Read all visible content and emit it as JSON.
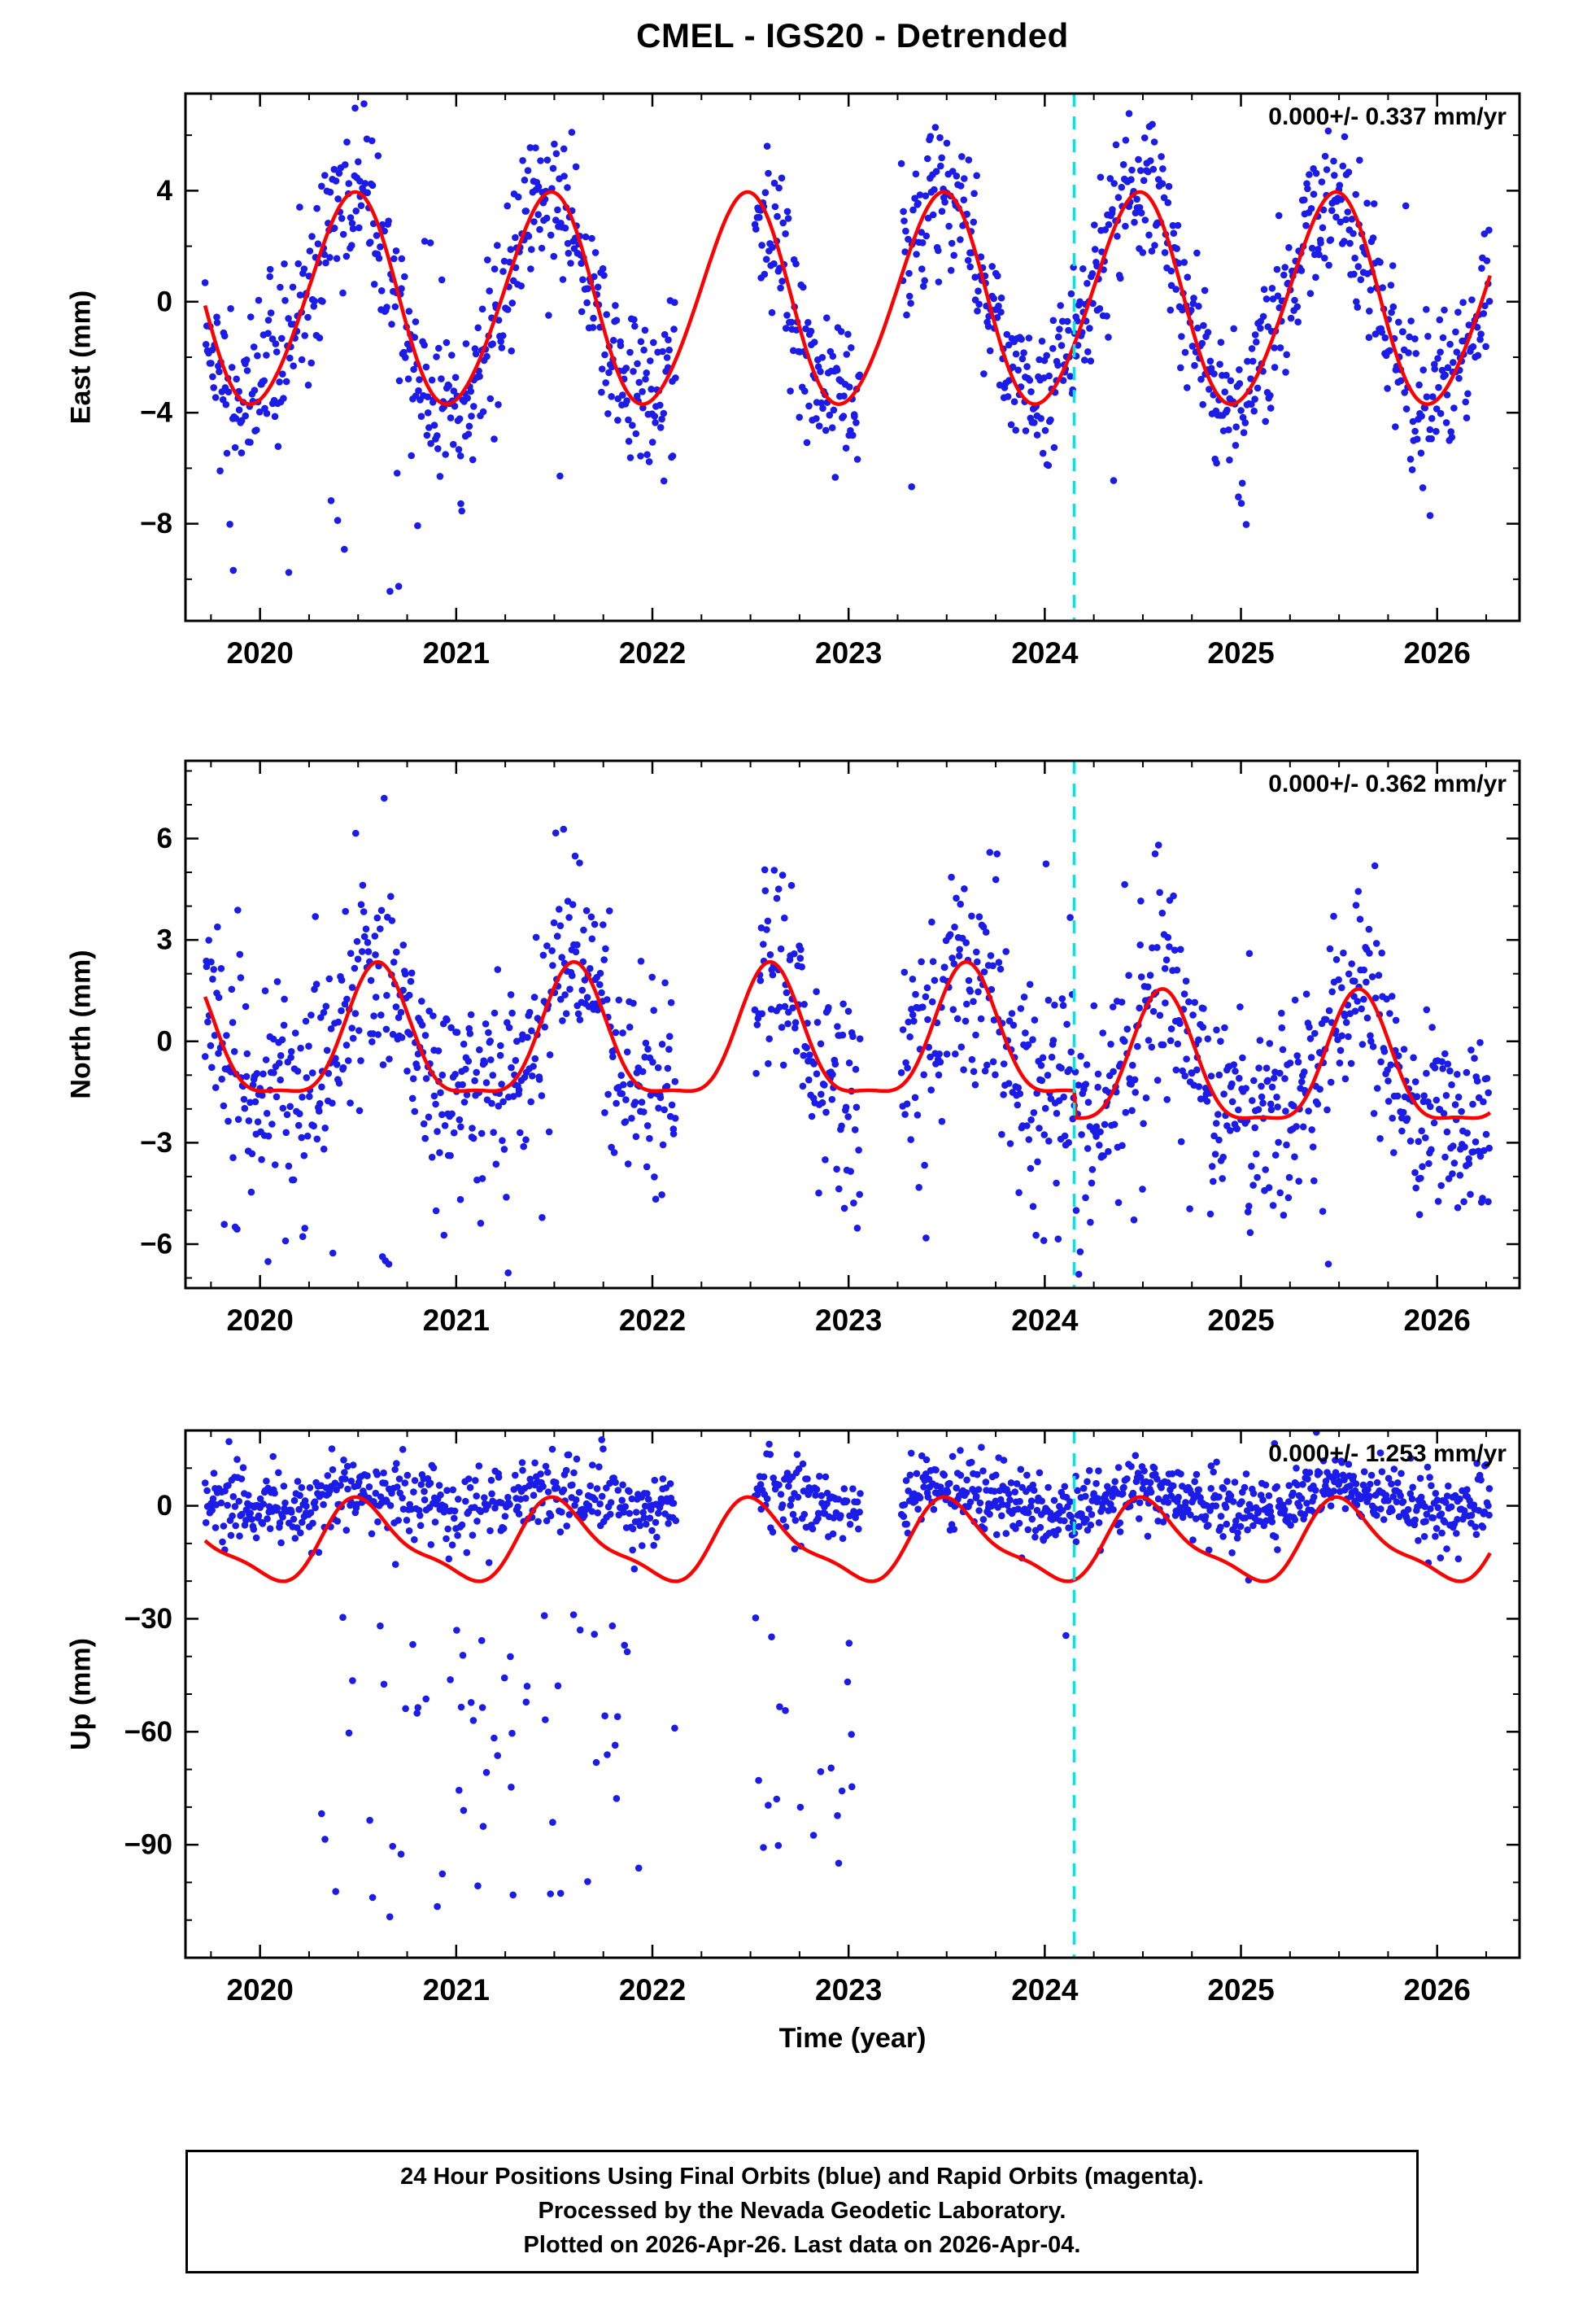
{
  "chart_data": {
    "type": "scatter",
    "title": "CMEL - IGS20 - Detrended",
    "xlabel": "Time (year)",
    "x_range": [
      2019.62,
      2026.42
    ],
    "x_major_ticks": [
      2020,
      2021,
      2022,
      2023,
      2024,
      2025,
      2026
    ],
    "x_minor_step": 0.25,
    "data_start": 2019.72,
    "data_end": 2026.27,
    "gaps": [
      [
        2022.12,
        2022.52
      ],
      [
        2023.06,
        2023.27
      ]
    ],
    "event_line": {
      "x": 2024.15,
      "color": "#00e6e6",
      "style": "dashed"
    },
    "colors": {
      "points": "#1c1ce8",
      "model": "#ff0000",
      "frame": "#000000"
    },
    "legend_note": "Final Orbits (blue), Rapid Orbits (magenta)",
    "panels": [
      {
        "id": "east",
        "ylabel": "East (mm)",
        "annotation": "0.000+/- 0.337 mm/yr",
        "y_range": [
          -11.5,
          7.5
        ],
        "y_major_ticks": [
          -8,
          -4,
          0,
          4
        ],
        "y_minor_step": 2,
        "model": {
          "mean": 0.0,
          "annual_amp": 3.8,
          "annual_phase": 0.47,
          "semi_amp": 0.25,
          "semi_phase": 0.55
        },
        "scatter": {
          "seed": 11,
          "dt": 0.0045,
          "sigma": 1.35,
          "mean_offset": 0,
          "model_weight": 1,
          "outliers": {
            "rate": 0.012,
            "window": [
              2019.72,
              2024.0
            ],
            "range": [
              -10.5,
              -5.5
            ]
          }
        }
      },
      {
        "id": "north",
        "ylabel": "North (mm)",
        "annotation": "0.000+/- 0.362 mm/yr",
        "y_range": [
          -7.3,
          8.3
        ],
        "y_major_ticks": [
          -6,
          -3,
          0,
          3,
          6
        ],
        "y_minor_step": 1,
        "model": {
          "mean": -0.1,
          "annual_amp": 1.9,
          "annual_phase": 0.6,
          "semi_amp": 0.55,
          "semi_phase": 0.6,
          "step": {
            "t": 2024.15,
            "dy": -0.8
          }
        },
        "scatter": {
          "seed": 22,
          "dt": 0.0045,
          "sigma": 1.5,
          "mean_offset": 0,
          "model_weight": 1,
          "outliers": {
            "rate": 0.02,
            "window": [
              2019.72,
              2025.8
            ],
            "range": [
              -6.6,
              -4.0
            ]
          }
        }
      },
      {
        "id": "up",
        "ylabel": "Up (mm)",
        "annotation": "0.000+/- 1.253 mm/yr",
        "y_range": [
          -120,
          20
        ],
        "y_major_ticks": [
          0,
          -30,
          -60,
          -90
        ],
        "y_minor_step": 10,
        "model": {
          "mean": -10,
          "annual_amp": 10,
          "annual_phase": 0.53,
          "semi_amp": 3.0,
          "semi_phase": 0.45
        },
        "scatter": {
          "seed": 33,
          "dt": 0.0045,
          "sigma": 4.5,
          "mean_offset": 4,
          "model_weight": 0.25,
          "outliers": {
            "rate": 0.13,
            "window": [
              2020.28,
              2023.06
            ],
            "range": [
              -110,
              -28
            ]
          }
        }
      }
    ]
  },
  "caption": {
    "lines": [
      "24 Hour Positions Using Final Orbits (blue) and Rapid Orbits (magenta).",
      "Processed by the Nevada Geodetic Laboratory.",
      "Plotted on 2026-Apr-26. Last data on 2026-Apr-04."
    ]
  }
}
